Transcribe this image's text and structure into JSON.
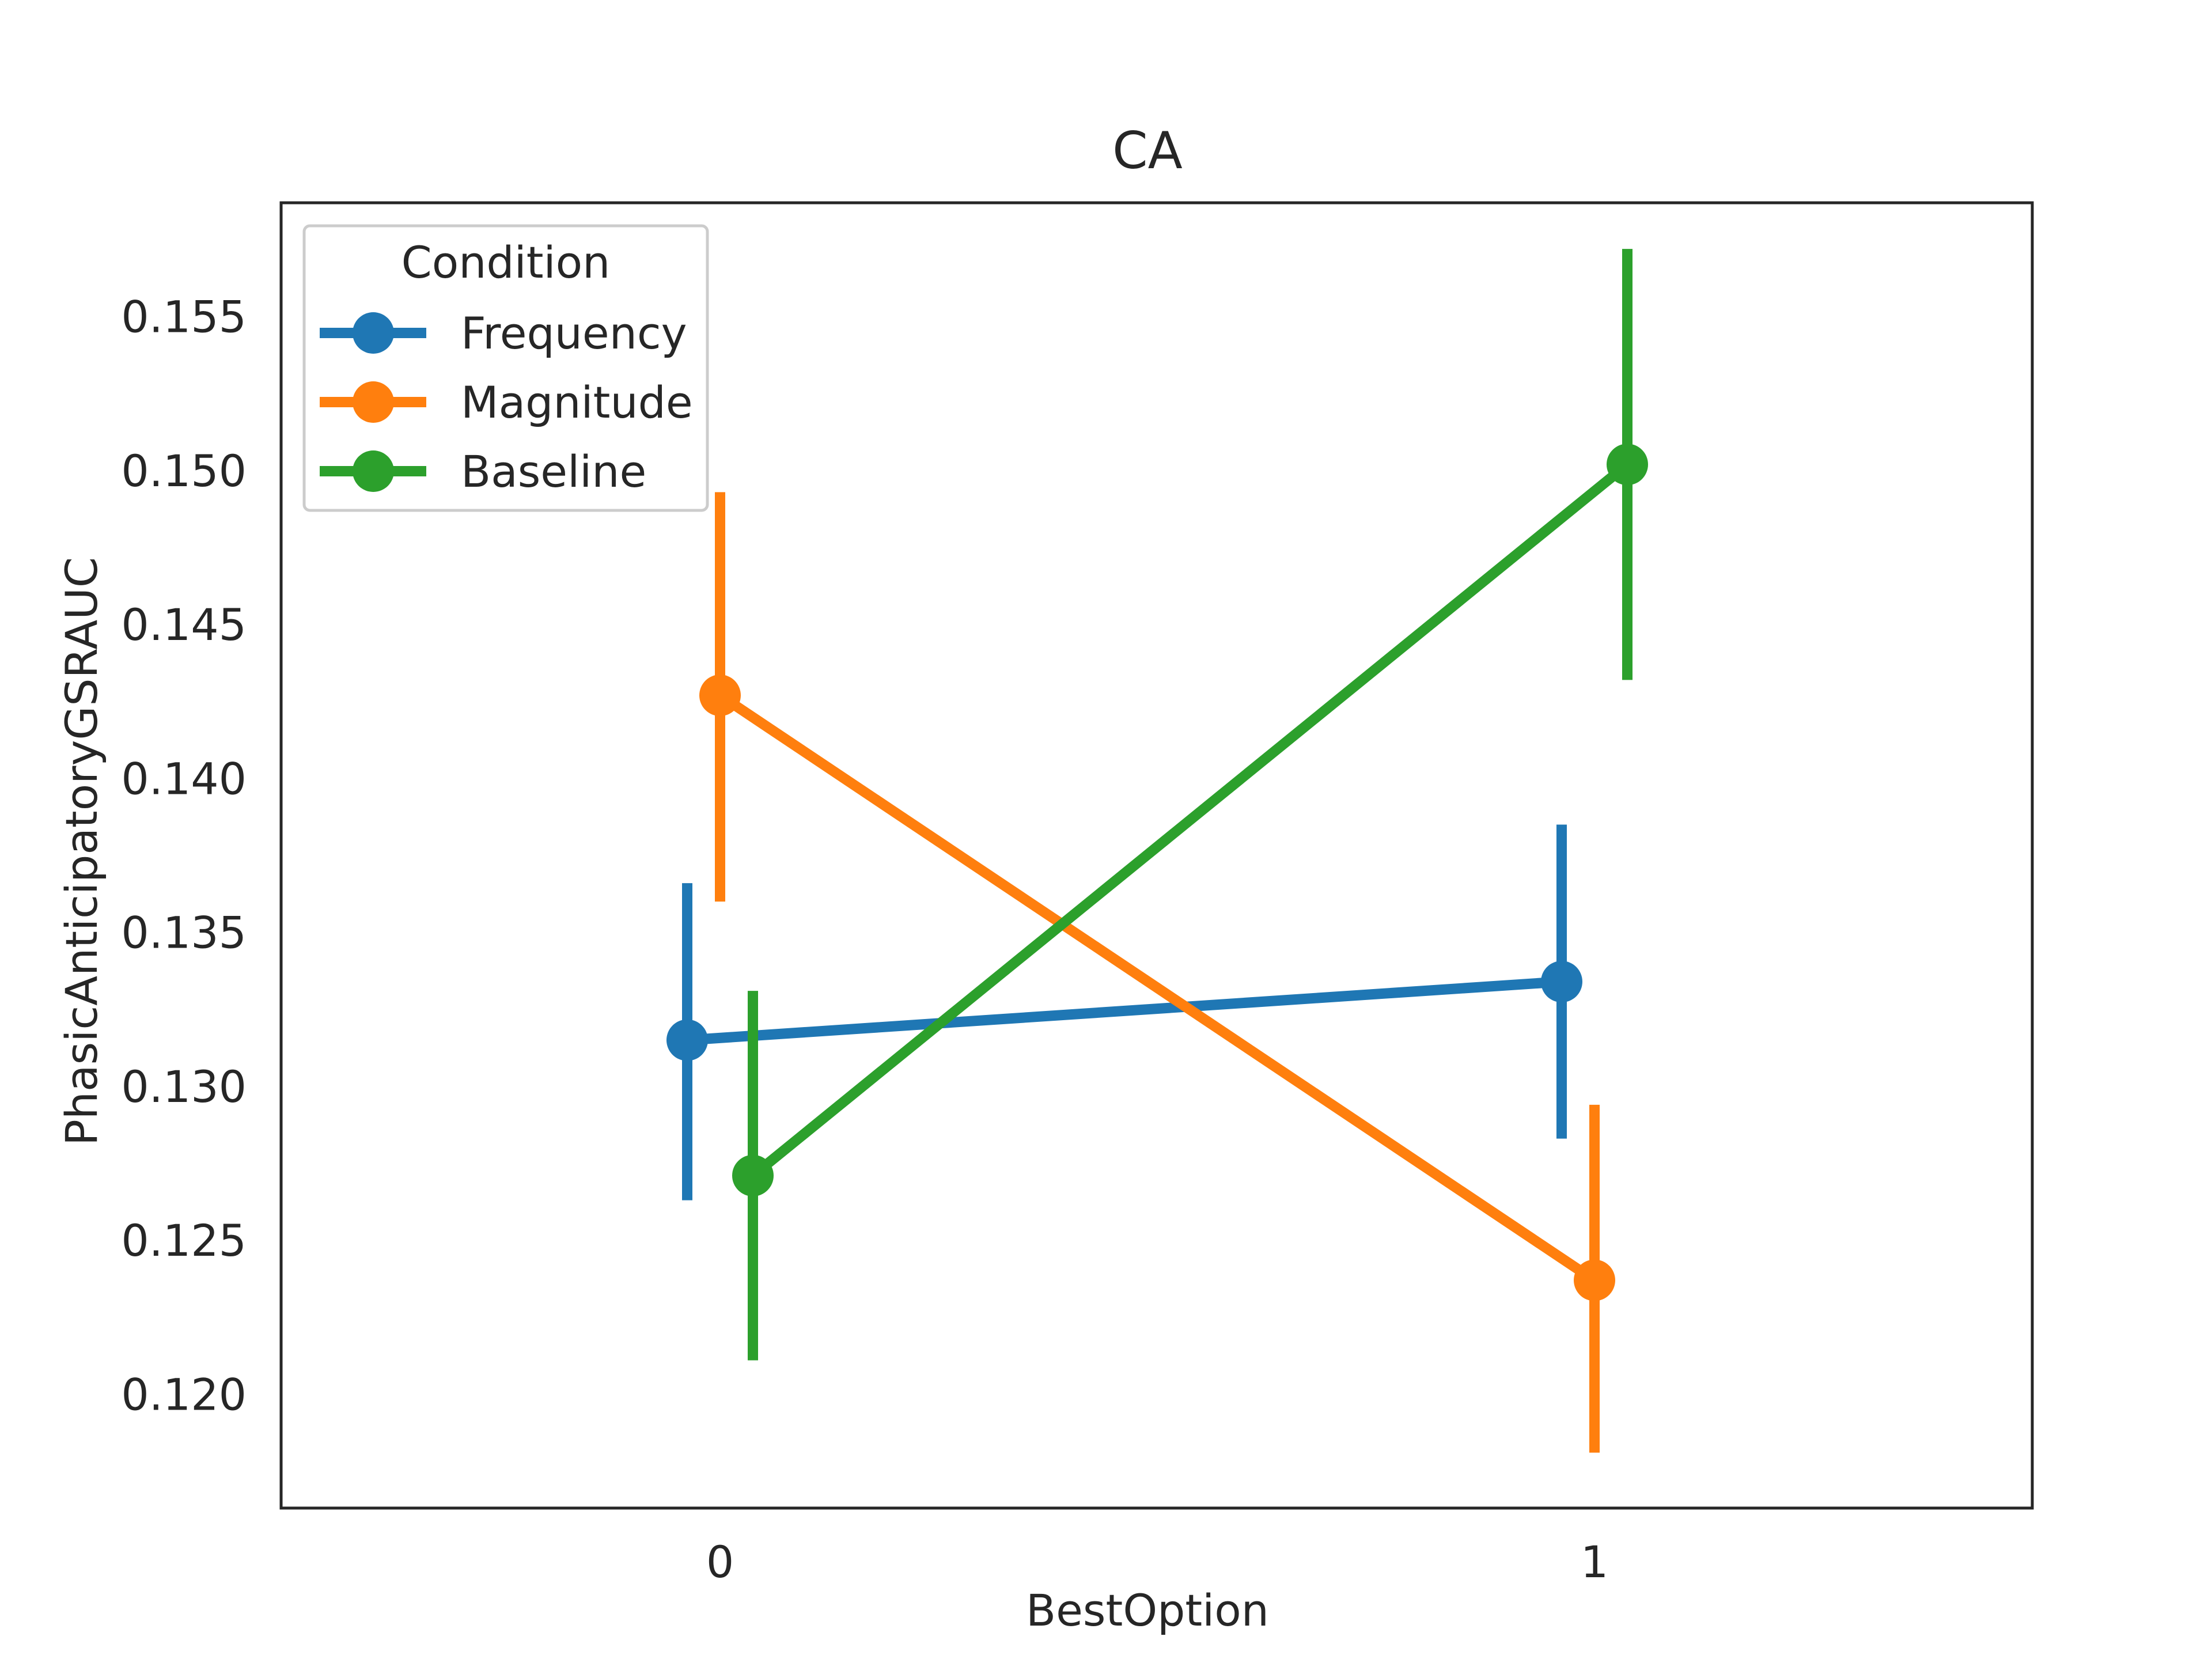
{
  "chart_data": {
    "type": "line",
    "title": "CA",
    "xlabel": "BestOption",
    "ylabel": "PhasicAnticipatoryGSRAUC",
    "categories": [
      "0",
      "1"
    ],
    "ylim": [
      0.1163,
      0.1587
    ],
    "yticks": [
      "0.120",
      "0.125",
      "0.130",
      "0.135",
      "0.140",
      "0.145",
      "0.150",
      "0.155"
    ],
    "grid": false,
    "legend": {
      "title": "Condition",
      "placement": "top-left"
    },
    "series": [
      {
        "name": "Frequency",
        "color": "#1f77b4",
        "values": [
          0.1315,
          0.1334
        ],
        "ci": [
          [
            0.1263,
            0.1366
          ],
          [
            0.1283,
            0.1385
          ]
        ]
      },
      {
        "name": "Magnitude",
        "color": "#ff7f0e",
        "values": [
          0.1427,
          0.1237
        ],
        "ci": [
          [
            0.136,
            0.1493
          ],
          [
            0.1181,
            0.1294
          ]
        ]
      },
      {
        "name": "Baseline",
        "color": "#2ca02c",
        "values": [
          0.1271,
          0.1502
        ],
        "ci": [
          [
            0.1211,
            0.1331
          ],
          [
            0.1432,
            0.1572
          ]
        ]
      }
    ]
  }
}
